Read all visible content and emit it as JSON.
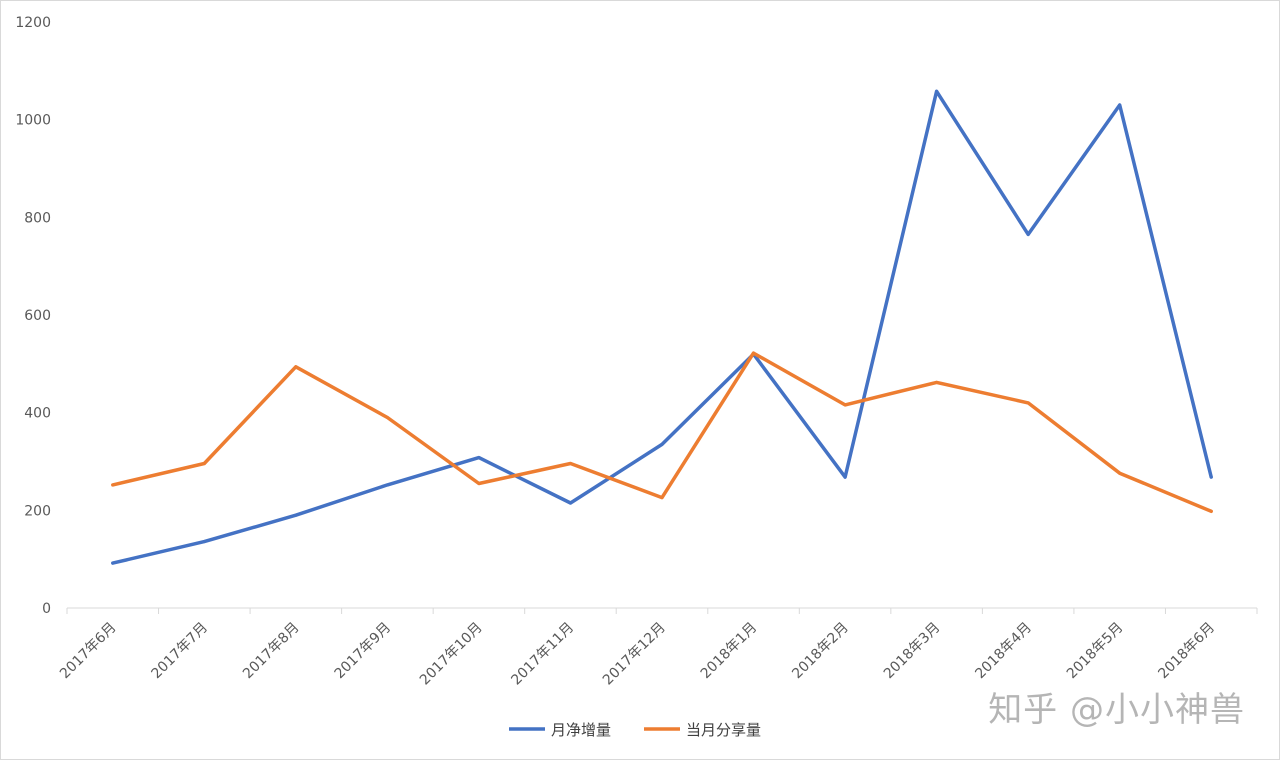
{
  "chart_data": {
    "type": "line",
    "categories": [
      "2017年6月",
      "2017年7月",
      "2017年8月",
      "2017年9月",
      "2017年10月",
      "2017年11月",
      "2017年12月",
      "2018年1月",
      "2018年2月",
      "2018年3月",
      "2018年4月",
      "2018年5月",
      "2018年6月"
    ],
    "series": [
      {
        "name": "月净增量",
        "color": "#4472C4",
        "values": [
          92,
          136,
          190,
          252,
          308,
          215,
          335,
          520,
          268,
          1058,
          765,
          1030,
          268
        ]
      },
      {
        "name": "当月分享量",
        "color": "#ED7D31",
        "values": [
          252,
          296,
          494,
          390,
          255,
          296,
          226,
          522,
          416,
          462,
          420,
          276,
          198
        ]
      }
    ],
    "title": "",
    "xlabel": "",
    "ylabel": "",
    "ylim": [
      0,
      1200
    ],
    "yticks": [
      "0",
      "200",
      "400",
      "600",
      "800",
      "1000",
      "1200"
    ],
    "grid": false,
    "legend_position": "bottom"
  },
  "watermark": "知乎 @小小神兽"
}
